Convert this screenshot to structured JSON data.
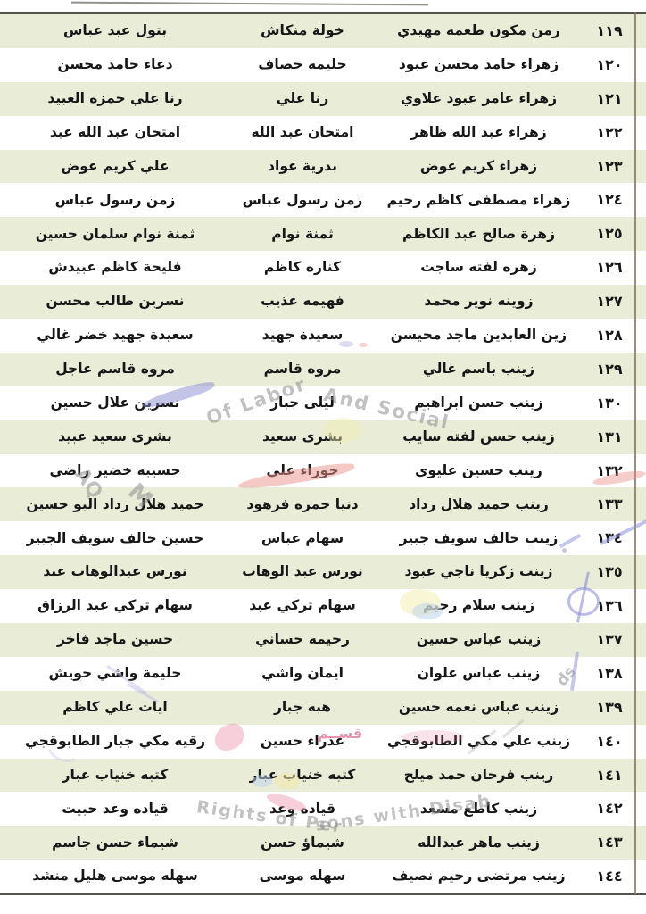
{
  "table": {
    "rows": [
      {
        "num": "١١٩",
        "name1": "زمن مكون طعمه مهيدي",
        "name2": "خولة منكاش",
        "name3": "بتول عبد عباس"
      },
      {
        "num": "١٢٠",
        "name1": "زهراء حامد محسن عبود",
        "name2": "حليمه خصاف",
        "name3": "دعاء حامد محسن"
      },
      {
        "num": "١٢١",
        "name1": "زهراء عامر عبود علاوي",
        "name2": "رنا علي",
        "name3": "رنا علي حمزه العبيد"
      },
      {
        "num": "١٢٢",
        "name1": "زهراء عبد الله ظاهر",
        "name2": "امتحان عبد الله",
        "name3": "امتحان عبد الله عبد"
      },
      {
        "num": "١٢٣",
        "name1": "زهراء كريم عوض",
        "name2": "بدرية عواد",
        "name3": "علي كريم عوض"
      },
      {
        "num": "١٢٤",
        "name1": "زهراء مصطفى كاظم رحيم",
        "name2": "زمن رسول عباس",
        "name3": "زمن رسول عباس"
      },
      {
        "num": "١٢٥",
        "name1": "زهرة صالح عبد الكاظم",
        "name2": "ثمنة نوام",
        "name3": "ثمنة نوام سلمان حسين"
      },
      {
        "num": "١٢٦",
        "name1": "زهره لفته ساجت",
        "name2": "كناره كاظم",
        "name3": "فليحة كاظم عبيدش"
      },
      {
        "num": "١٢٧",
        "name1": "زوينه نوير محمد",
        "name2": "فهيمه عذيب",
        "name3": "نسرين طالب محسن"
      },
      {
        "num": "١٢٨",
        "name1": "زين العابدين ماجد محيسن",
        "name2": "سعيدة جهيد",
        "name3": "سعيدة جهيد خضر غالي"
      },
      {
        "num": "١٢٩",
        "name1": "زينب باسم غالي",
        "name2": "مروه قاسم",
        "name3": "مروه قاسم عاجل"
      },
      {
        "num": "١٣٠",
        "name1": "زينب حسن ابراهيم",
        "name2": "ليلى جبار",
        "name3": "نسرين علال حسين"
      },
      {
        "num": "١٣١",
        "name1": "زينب حسن لفته سايب",
        "name2": "بشرى سعيد",
        "name3": "بشرى سعيد عبيد"
      },
      {
        "num": "١٣٢",
        "name1": "زينب حسين عليوي",
        "name2": "حوراء علي",
        "name3": "حسيبه خضير راضي"
      },
      {
        "num": "١٣٣",
        "name1": "زينب حميد هلال رداد",
        "name2": "دنيا حمزه فرهود",
        "name3": "حميد هلال رداد البو حسين"
      },
      {
        "num": "١٣٤",
        "name1": "زينب خالف سويف جبير",
        "name2": "سهام عباس",
        "name3": "حسين خالف سويف الجبير"
      },
      {
        "num": "١٣٥",
        "name1": "زينب زكريا ناجي عبود",
        "name2": "نورس عبد الوهاب",
        "name3": "نورس عبدالوهاب عبد"
      },
      {
        "num": "١٣٦",
        "name1": "زينب سلام رحيم",
        "name2": "سهام تركي عبد",
        "name3": "سهام تركي عبد الرزاق"
      },
      {
        "num": "١٣٧",
        "name1": "زينب عباس حسين",
        "name2": "رحيمه حساني",
        "name3": "حسين ماجد فاخر"
      },
      {
        "num": "١٣٨",
        "name1": "زينب عباس علوان",
        "name2": "ايمان واشي",
        "name3": "حليمة واشي حويش"
      },
      {
        "num": "١٣٩",
        "name1": "زينب عباس نعمه حسين",
        "name2": "هبه جبار",
        "name3": "ايات علي كاظم"
      },
      {
        "num": "١٤٠",
        "name1": "زينب علي مكي الطابوقجي",
        "name2": "عذراء حسين",
        "name3": "رقيه مكي جبار الطابوقجي"
      },
      {
        "num": "١٤١",
        "name1": "زينب فرحان حمد ميلح",
        "name2": "كتبه خنياب عبار",
        "name3": "كتبه خنياب عبار"
      },
      {
        "num": "١٤٢",
        "name1": "زينب كاطع مسعد",
        "name2": "قياده وعد",
        "name3": "قياده وعد حبيت"
      },
      {
        "num": "١٤٣",
        "name1": "زينب ماهر عبدالله",
        "name2": "شيماؤ حسن",
        "name3": "شيماء حسن جاسم"
      },
      {
        "num": "١٤٤",
        "name1": "زينب مرتضى رحيم نصيف",
        "name2": "سهله موسى",
        "name3": "سهله موسى هليل منشد"
      }
    ]
  },
  "watermark": {
    "arc_top_left": "Of Labor",
    "arc_top_right": "And Social",
    "arc_left_1": "AQ",
    "arc_left_2": "M",
    "arc_right_small": "ds",
    "arc_bottom_left": "Rights of Per",
    "arc_bottom_right": "sons with Disab",
    "pink_label": "قســم"
  },
  "colors": {
    "row_band": "#e9edd8",
    "table_border": "#55544a",
    "right_border": "#8a7760",
    "watermark_gray": "#8f8f8f",
    "watermark_blue": "#9090d8",
    "watermark_red": "#e8928c",
    "watermark_pink": "#d96f92",
    "watermark_yellow": "#f2eeb0"
  }
}
